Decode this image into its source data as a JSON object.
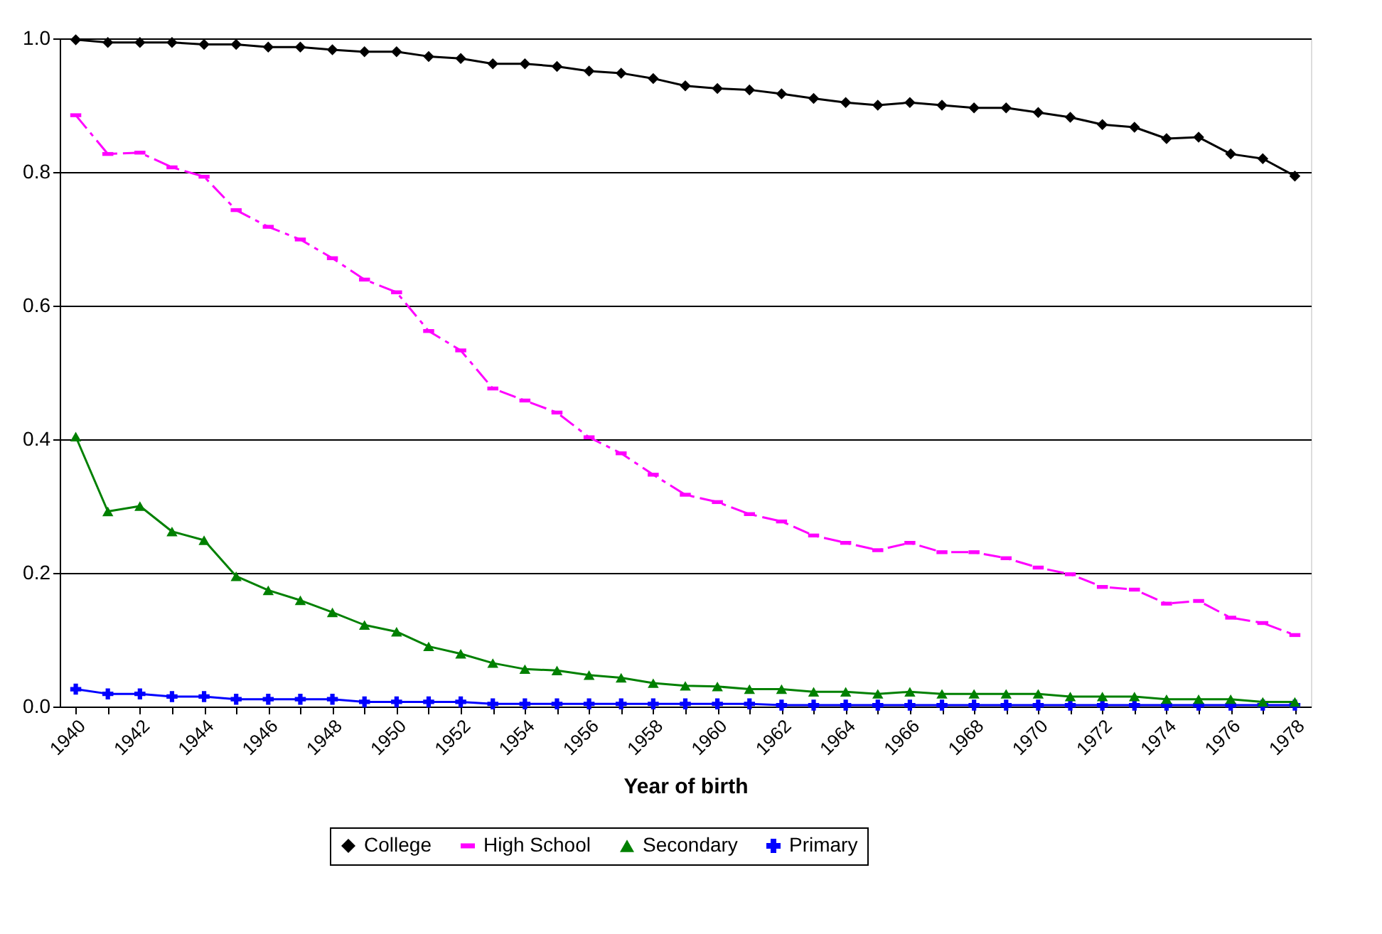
{
  "chart_data": {
    "type": "line",
    "xlabel": "Year of birth",
    "categories": [
      "1940",
      null,
      "1942",
      null,
      "1944",
      null,
      "1946",
      null,
      "1948",
      null,
      "1950",
      null,
      "1952",
      null,
      "1954",
      null,
      "1956",
      null,
      "1958",
      null,
      "1960",
      null,
      "1962",
      null,
      "1964",
      null,
      "1966",
      null,
      "1968",
      null,
      "1970",
      null,
      "1972",
      null,
      "1974",
      null,
      "1976",
      null,
      "1978"
    ],
    "series": [
      {
        "name": "College",
        "color": "#000000",
        "marker": "diamond",
        "line_style": "solid",
        "values": [
          0.998,
          0.994,
          0.994,
          0.994,
          0.991,
          0.991,
          0.987,
          0.987,
          0.983,
          0.98,
          0.98,
          0.973,
          0.97,
          0.962,
          0.962,
          0.958,
          0.951,
          0.948,
          0.94,
          0.929,
          0.925,
          0.923,
          0.917,
          0.91,
          0.904,
          0.9,
          0.904,
          0.9,
          0.896,
          0.896,
          0.889,
          0.882,
          0.871,
          0.867,
          0.85,
          0.852,
          0.827,
          0.82,
          0.794
        ]
      },
      {
        "name": "High School",
        "color": "#ff00ff",
        "marker": "square",
        "line_style": "dashed",
        "values": [
          0.885,
          0.827,
          0.829,
          0.807,
          0.793,
          0.743,
          0.718,
          0.699,
          0.671,
          0.639,
          0.62,
          0.562,
          0.533,
          0.476,
          0.458,
          0.44,
          0.403,
          0.379,
          0.347,
          0.317,
          0.306,
          0.288,
          0.277,
          0.256,
          0.245,
          0.234,
          0.245,
          0.231,
          0.231,
          0.222,
          0.208,
          0.198,
          0.179,
          0.175,
          0.154,
          0.158,
          0.133,
          0.125,
          0.107
        ]
      },
      {
        "name": "Secondary",
        "color": "#008000",
        "marker": "triangle",
        "line_style": "solid",
        "values": [
          0.404,
          0.292,
          0.3,
          0.262,
          0.249,
          0.195,
          0.174,
          0.159,
          0.141,
          0.122,
          0.112,
          0.09,
          0.079,
          0.065,
          0.056,
          0.054,
          0.047,
          0.043,
          0.035,
          0.031,
          0.03,
          0.026,
          0.026,
          0.022,
          0.022,
          0.019,
          0.022,
          0.019,
          0.019,
          0.019,
          0.019,
          0.015,
          0.015,
          0.015,
          0.011,
          0.011,
          0.011,
          0.007,
          0.007
        ]
      },
      {
        "name": "Primary",
        "color": "#0000ff",
        "marker": "cross",
        "line_style": "solid",
        "values": [
          0.026,
          0.019,
          0.019,
          0.015,
          0.015,
          0.011,
          0.011,
          0.011,
          0.011,
          0.007,
          0.007,
          0.007,
          0.007,
          0.004,
          0.004,
          0.004,
          0.004,
          0.004,
          0.004,
          0.004,
          0.004,
          0.004,
          0.002,
          0.002,
          0.002,
          0.002,
          0.002,
          0.002,
          0.002,
          0.002,
          0.002,
          0.002,
          0.002,
          0.002,
          0.002,
          0.002,
          0.002,
          0.002,
          0.002
        ]
      }
    ],
    "ylim": [
      0,
      1.0
    ],
    "yticks": [
      {
        "value": 0,
        "label": "0.0"
      },
      {
        "value": 0.2,
        "label": "0.2"
      },
      {
        "value": 0.4,
        "label": "0.4"
      },
      {
        "value": 0.6,
        "label": "0.6"
      },
      {
        "value": 0.8,
        "label": "0.8"
      },
      {
        "value": 1.0,
        "label": "1.0"
      }
    ],
    "grid": "y",
    "legend": "bottom"
  }
}
